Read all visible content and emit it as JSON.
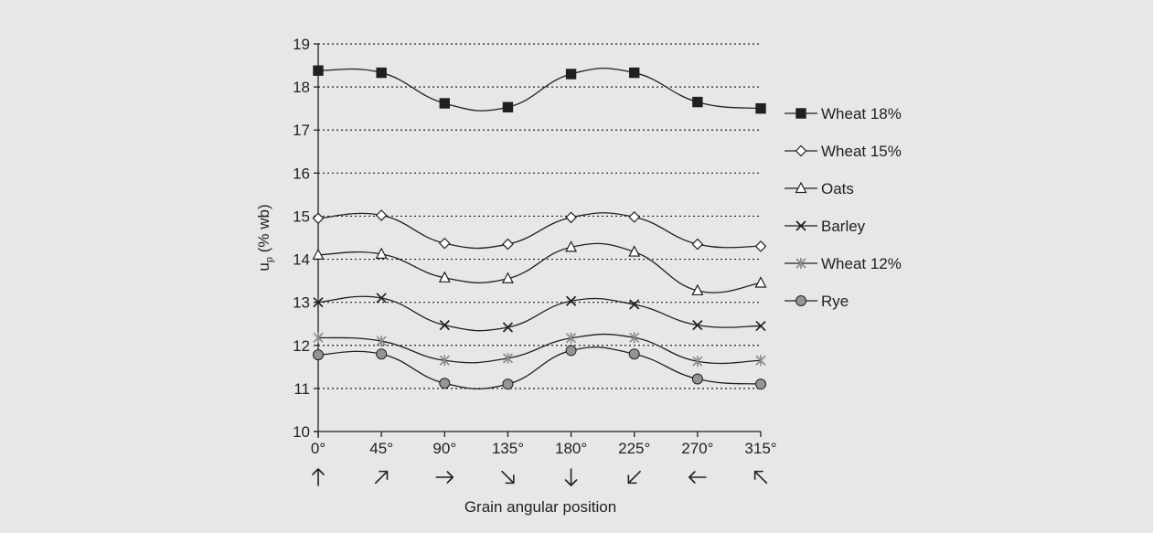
{
  "chart_data": {
    "type": "line",
    "title": "",
    "xlabel": "Grain angular position",
    "ylabel_main": "u",
    "ylabel_sub": "p",
    "ylabel_rest": " (% wb)",
    "categories": [
      "0°",
      "45°",
      "90°",
      "135°",
      "180°",
      "225°",
      "270°",
      "315°"
    ],
    "direction_icons": [
      "arrow-up",
      "arrow-up-right",
      "arrow-right",
      "arrow-down-right",
      "arrow-down",
      "arrow-down-left",
      "arrow-left",
      "arrow-up-left"
    ],
    "ylim": [
      10,
      19
    ],
    "yticks": [
      10,
      11,
      12,
      13,
      14,
      15,
      16,
      17,
      18,
      19
    ],
    "grid": "dotted horizontal",
    "legend_position": "right",
    "series": [
      {
        "name": "Wheat 18%",
        "marker": "square",
        "color": "#231f20",
        "values": [
          18.38,
          18.33,
          17.62,
          17.53,
          18.3,
          18.33,
          17.65,
          17.5
        ]
      },
      {
        "name": "Wheat 15%",
        "marker": "diamond",
        "color": "#231f20",
        "values": [
          14.95,
          15.02,
          14.37,
          14.35,
          14.97,
          14.98,
          14.35,
          14.3
        ]
      },
      {
        "name": "Oats",
        "marker": "triangle",
        "color": "#231f20",
        "values": [
          14.1,
          14.12,
          13.57,
          13.55,
          14.28,
          14.17,
          13.27,
          13.45
        ]
      },
      {
        "name": "Barley",
        "marker": "x",
        "color": "#231f20",
        "values": [
          13.0,
          13.1,
          12.47,
          12.42,
          13.03,
          12.95,
          12.47,
          12.45
        ]
      },
      {
        "name": "Wheat 12%",
        "marker": "star",
        "color": "#8c8c8c",
        "values": [
          12.18,
          12.1,
          11.65,
          11.7,
          12.17,
          12.18,
          11.63,
          11.65
        ]
      },
      {
        "name": "Rye",
        "marker": "circle",
        "color": "#231f20",
        "values": [
          11.78,
          11.8,
          11.12,
          11.1,
          11.88,
          11.8,
          11.22,
          11.1
        ]
      }
    ]
  }
}
